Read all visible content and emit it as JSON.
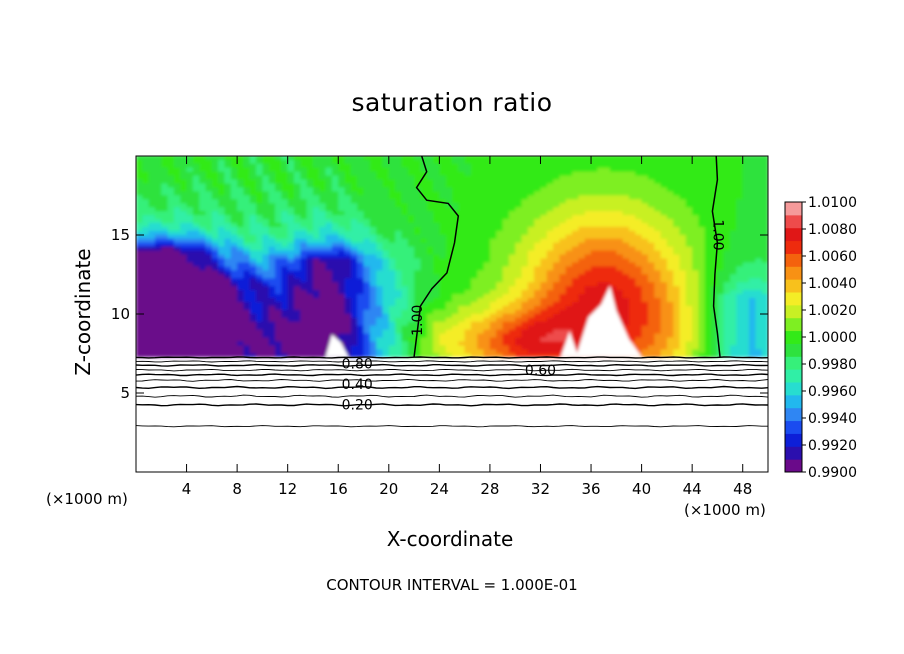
{
  "chart_data": {
    "type": "heatmap",
    "title": "saturation ratio",
    "xlabel": "X-coordinate",
    "ylabel": "Z-coordinate",
    "x_unit_label": "(×1000 m)",
    "xlim": [
      0,
      50
    ],
    "ylim": [
      0,
      20
    ],
    "x_ticks": [
      4,
      8,
      12,
      16,
      20,
      24,
      28,
      32,
      36,
      40,
      44,
      48
    ],
    "y_ticks": [
      5,
      10,
      15
    ],
    "colorbar": {
      "min": 0.99,
      "max": 1.01,
      "step": 0.001,
      "tick_labels": [
        "0.9900",
        "0.9920",
        "0.9940",
        "0.9960",
        "0.9980",
        "1.0000",
        "1.0020",
        "1.0040",
        "1.0060",
        "1.0080",
        "1.0100"
      ],
      "colors": [
        "#6a0a8a",
        "#2b0fae",
        "#0d1fd8",
        "#1a4cf0",
        "#2f86f3",
        "#22b8ee",
        "#27ddd0",
        "#30efa6",
        "#36f07a",
        "#2ee23e",
        "#33ea18",
        "#7eef22",
        "#c8f024",
        "#f4ed26",
        "#f8c11c",
        "#f89114",
        "#f4620d",
        "#ee2b0e",
        "#e01717",
        "#ee4b4b",
        "#f59a9a"
      ]
    },
    "contour_interval_text": "CONTOUR INTERVAL = 1.000E-01",
    "contour_labels": [
      {
        "text": "1.00",
        "x": 22.3,
        "y": 9.6,
        "rotate": -90
      },
      {
        "text": "1.00",
        "x": 46.0,
        "y": 15.0,
        "rotate": 90
      },
      {
        "text": "0.80",
        "x": 17.5,
        "y": 6.8
      },
      {
        "text": "0.60",
        "x": 32.0,
        "y": 6.4
      },
      {
        "text": "0.40",
        "x": 17.5,
        "y": 5.5
      },
      {
        "text": "0.20",
        "x": 17.5,
        "y": 4.2
      }
    ],
    "contour_levels_below_cloud_base": [
      0.2,
      0.4,
      0.6,
      0.8
    ],
    "cloud_base_z": 7.3
  }
}
